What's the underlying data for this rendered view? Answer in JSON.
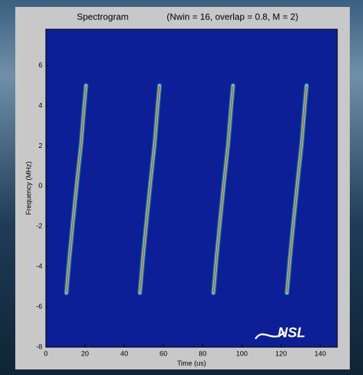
{
  "chart_data": {
    "type": "spectrogram",
    "title": "Spectrogram",
    "subtitle": "(Nwin = 16, overlap = 0.8, M = 2)",
    "x_label": "Time (us)",
    "y_label": "Frequency (MHz)",
    "logo": "NSL",
    "x": [
      10.5,
      12,
      14,
      16,
      18,
      19.5,
      20.5,
      null,
      48,
      49.5,
      51.5,
      53.5,
      55.5,
      57,
      58,
      null,
      85.5,
      87,
      89,
      91,
      93,
      94.5,
      95.5,
      null,
      123,
      124.5,
      126.5,
      128.5,
      130.5,
      132,
      133
    ],
    "values": [
      -5.3,
      -3.6,
      -1.6,
      0.3,
      2.1,
      3.9,
      5,
      null,
      -5.3,
      -3.6,
      -1.6,
      0.3,
      2.1,
      3.9,
      5,
      null,
      -5.3,
      -3.6,
      -1.6,
      0.3,
      2.1,
      3.9,
      5,
      null,
      -5.3,
      -3.6,
      -1.6,
      0.3,
      2.1,
      3.9,
      5
    ],
    "color": "#d42a10",
    "background": "#0c1f96",
    "xlim": [
      0,
      148.7
    ],
    "ylim": [
      -8,
      7.8
    ],
    "xticks": [
      0,
      20,
      40,
      60,
      80,
      100,
      120,
      140
    ],
    "yticks": [
      -8,
      -6,
      -4,
      -2,
      0,
      2,
      4,
      6
    ]
  }
}
